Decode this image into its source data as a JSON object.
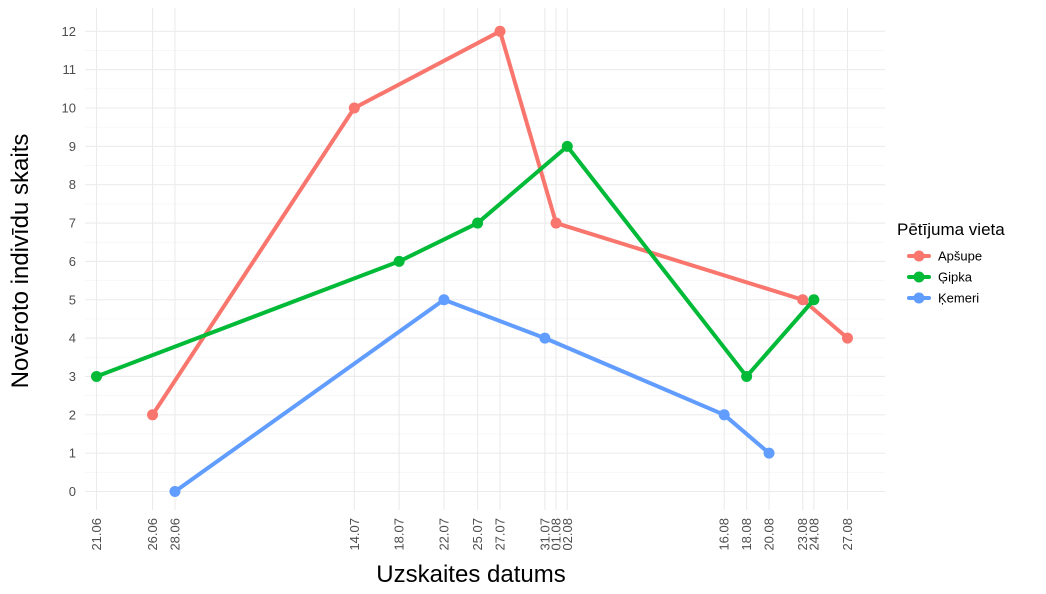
{
  "chart_data": {
    "type": "line",
    "xlabel": "Uzskaites datums",
    "ylabel": "Novēroto indivīdu skaits",
    "ylim": [
      -0.6,
      12.6
    ],
    "y_ticks": [
      "0",
      "1",
      "2",
      "3",
      "4",
      "5",
      "6",
      "7",
      "8",
      "9",
      "10",
      "11",
      "12"
    ],
    "x_ticks": [
      "21.06",
      "26.06",
      "28.06",
      "14.07",
      "18.07",
      "22.07",
      "25.07",
      "27.07",
      "31.07",
      "01.08",
      "02.08",
      "16.08",
      "18.08",
      "20.08",
      "23.08",
      "24.08",
      "27.08"
    ],
    "legend": {
      "title": "Pētījuma vieta",
      "position": "right"
    },
    "grid": true,
    "series": [
      {
        "name": "Apšupe",
        "color": "#F8766D",
        "points": [
          {
            "x": "26.06",
            "y": 2
          },
          {
            "x": "14.07",
            "y": 10
          },
          {
            "x": "27.07",
            "y": 12
          },
          {
            "x": "01.08",
            "y": 7
          },
          {
            "x": "23.08",
            "y": 5
          },
          {
            "x": "27.08",
            "y": 4
          }
        ]
      },
      {
        "name": "Ģipka",
        "color": "#00BA38",
        "points": [
          {
            "x": "21.06",
            "y": 3
          },
          {
            "x": "18.07",
            "y": 6
          },
          {
            "x": "25.07",
            "y": 7
          },
          {
            "x": "02.08",
            "y": 9
          },
          {
            "x": "18.08",
            "y": 3
          },
          {
            "x": "24.08",
            "y": 5
          }
        ]
      },
      {
        "name": "Ķemeri",
        "color": "#619CFF",
        "points": [
          {
            "x": "28.06",
            "y": 0
          },
          {
            "x": "22.07",
            "y": 5
          },
          {
            "x": "31.07",
            "y": 4
          },
          {
            "x": "16.08",
            "y": 2
          },
          {
            "x": "20.08",
            "y": 1
          }
        ]
      }
    ]
  }
}
